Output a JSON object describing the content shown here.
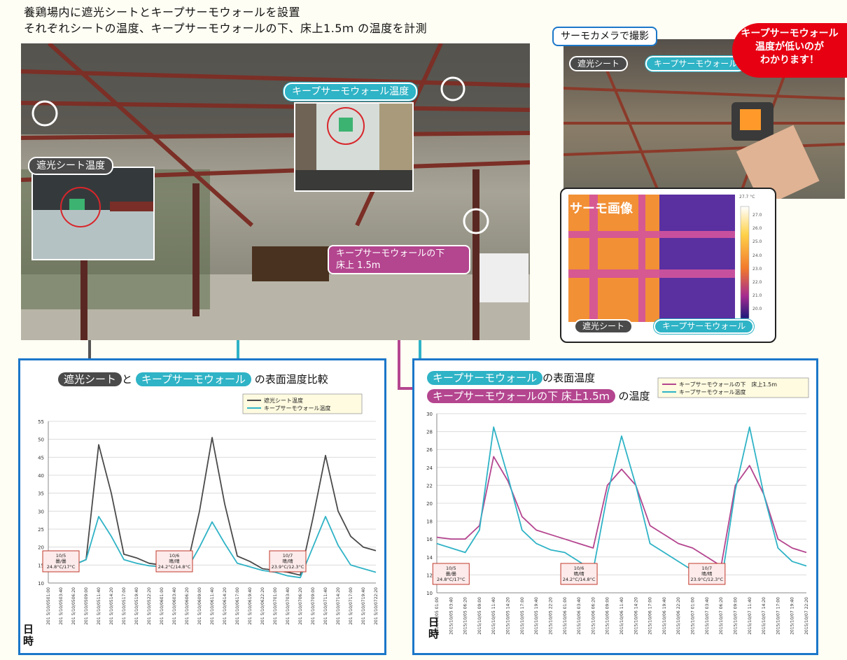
{
  "header": {
    "line1": "養鶏場内に遮光シートとキープサーモウォールを設置",
    "line2": "それぞれシートの温度、キープサーモウォールの下、床上1.5ｍ の温度を計測"
  },
  "photo_labels": {
    "keep_temp": "キープサーモウォール温度",
    "shade_temp": "遮光シート温度",
    "under_floor": "キープサーモウォールの下\n床上 1.5m"
  },
  "thermo": {
    "title": "サーモカメラで撮影",
    "label_shade": "遮光シート",
    "label_keep": "キープサーモウォール",
    "callout": "キープサーモウォール\n温度が低いのが\nわかります！",
    "image_label": "サーモ画像",
    "bottom_shade": "遮光シート",
    "bottom_keep": "キープサーモウォール",
    "scale_top": "27.7 °C",
    "scale_ticks": [
      "27.0",
      "26.0",
      "25.0",
      "24.0",
      "23.0",
      "22.0",
      "21.0",
      "20.0"
    ]
  },
  "colors": {
    "cyan": "#2fb3c6",
    "dark": "#4a4a4a",
    "magenta": "#b4458f",
    "blue": "#1b77c9"
  },
  "left_chart": {
    "title_a": "遮光シート",
    "title_and": "と",
    "title_b": "キープサーモウォール",
    "title_rest": "の表面温度比較",
    "legend": [
      "遮光シート温度",
      "キープサーモウォール温度"
    ],
    "axis_label": "日\n時"
  },
  "right_chart": {
    "title_a": "キープサーモウォール",
    "title_a_rest": "の表面温度",
    "title_b": "キープサーモウォールの下 床上1.5ｍ",
    "title_b_rest": "の温度",
    "legend": [
      "キープサーモウォールの下　床上1.5m",
      "キープサーモウォール温度"
    ],
    "axis_label": "日\n時"
  },
  "chart_data": [
    {
      "type": "line",
      "ylim": [
        10,
        55
      ],
      "yticks": [
        10,
        15,
        20,
        25,
        30,
        35,
        40,
        45,
        50,
        55
      ],
      "x": [
        "201 5/10/0501:00",
        "201 5/10/0503:40",
        "201 5/10/0506:20",
        "201 5/10/0509:00",
        "201 5/10/0511:40",
        "201 5/10/0514:20",
        "201 5/10/0517:00",
        "201 5/10/0519:40",
        "201 5/10/0522:20",
        "201 5/10/0601:00",
        "201 5/10/0603:40",
        "201 5/10/0606:20",
        "201 5/10/0609:00",
        "201 5/10/0611:40",
        "201 5/10/0614:20",
        "201 5/10/0617:00",
        "201 5/10/0619:40",
        "201 5/10/0622:20",
        "201 5/10/0701:00",
        "201 5/10/0703:40",
        "201 5/10/0706:20",
        "201 5/10/0709:00",
        "201 5/10/0711:40",
        "201 5/10/0714:20",
        "201 5/10/0717:00",
        "201 5/10/0719:40",
        "201 5/10/0722:20"
      ],
      "series": [
        {
          "name": "遮光シート温度",
          "color": "#4a4a4a",
          "values": [
            15.4,
            15.0,
            15.0,
            16.5,
            48.5,
            35.0,
            18.0,
            17.0,
            15.5,
            15.0,
            14.5,
            14.5,
            30.0,
            50.5,
            32.0,
            17.5,
            16.0,
            14.0,
            13.5,
            13.0,
            12.2,
            28.0,
            45.5,
            30.0,
            23.0,
            20.0,
            19.0
          ]
        },
        {
          "name": "キープサーモウォール温度",
          "color": "#2fb3c6",
          "values": [
            15.5,
            15.0,
            15.0,
            16.5,
            28.5,
            23.0,
            16.5,
            15.5,
            14.8,
            14.5,
            14.0,
            13.8,
            20.0,
            27.0,
            21.0,
            15.5,
            14.5,
            13.5,
            13.0,
            12.0,
            11.5,
            20.0,
            28.5,
            20.5,
            15.0,
            14.0,
            13.0
          ]
        }
      ],
      "annotations": [
        {
          "lines": [
            "10/5",
            "曇/曇",
            "24.8°C/17°C"
          ]
        },
        {
          "lines": [
            "10/6",
            "晴/晴",
            "24.2°C/14.8°C"
          ]
        },
        {
          "lines": [
            "10/7",
            "晴/晴",
            "23.9°C/12.3°C"
          ]
        }
      ]
    },
    {
      "type": "line",
      "ylim": [
        10,
        30
      ],
      "yticks": [
        10,
        12,
        14,
        16,
        18,
        20,
        22,
        24,
        26,
        28,
        30
      ],
      "x": [
        "2015/10/05 01:00",
        "2015/10/05 03:40",
        "2015/10/05 06:20",
        "2015/10/05 09:00",
        "2015/10/05 11:40",
        "2015/10/05 14:20",
        "2015/10/05 17:00",
        "2015/10/05 19:40",
        "2015/10/05 22:20",
        "2015/10/06 01:00",
        "2015/10/06 03:40",
        "2015/10/06 06:20",
        "2015/10/06 09:00",
        "2015/10/06 11:40",
        "2015/10/06 14:20",
        "2015/10/06 17:00",
        "2015/10/06 19:40",
        "2015/10/06 22:20",
        "2015/10/07 01:00",
        "2015/10/07 03:40",
        "2015/10/07 06:20",
        "2015/10/07 09:00",
        "2015/10/07 11:40",
        "2015/10/07 14:20",
        "2015/10/07 17:00",
        "2015/10/07 19:40",
        "2015/10/07 22:20"
      ],
      "series": [
        {
          "name": "キープサーモウォールの下　床上1.5m",
          "color": "#b4458f",
          "values": [
            16.2,
            16.0,
            16.0,
            17.5,
            25.2,
            22.5,
            18.5,
            17.0,
            16.5,
            16.0,
            15.5,
            15.0,
            22.0,
            23.8,
            22.0,
            17.5,
            16.5,
            15.5,
            15.0,
            14.0,
            13.0,
            22.0,
            24.2,
            21.0,
            16.0,
            15.0,
            14.5
          ]
        },
        {
          "name": "キープサーモウォール温度",
          "color": "#2fb3c6",
          "values": [
            15.5,
            15.0,
            14.5,
            17.0,
            28.5,
            23.0,
            17.0,
            15.5,
            14.8,
            14.5,
            13.5,
            12.5,
            21.0,
            27.5,
            22.0,
            15.5,
            14.5,
            13.5,
            12.5,
            11.5,
            11.0,
            21.5,
            28.5,
            21.0,
            15.0,
            13.5,
            13.0
          ]
        }
      ],
      "annotations": [
        {
          "lines": [
            "10/5",
            "曇/曇",
            "24.8°C/17°C"
          ]
        },
        {
          "lines": [
            "10/6",
            "晴/晴",
            "24.2°C/14.8°C"
          ]
        },
        {
          "lines": [
            "10/7",
            "晴/晴",
            "23.9°C/12.3°C"
          ]
        }
      ]
    }
  ]
}
